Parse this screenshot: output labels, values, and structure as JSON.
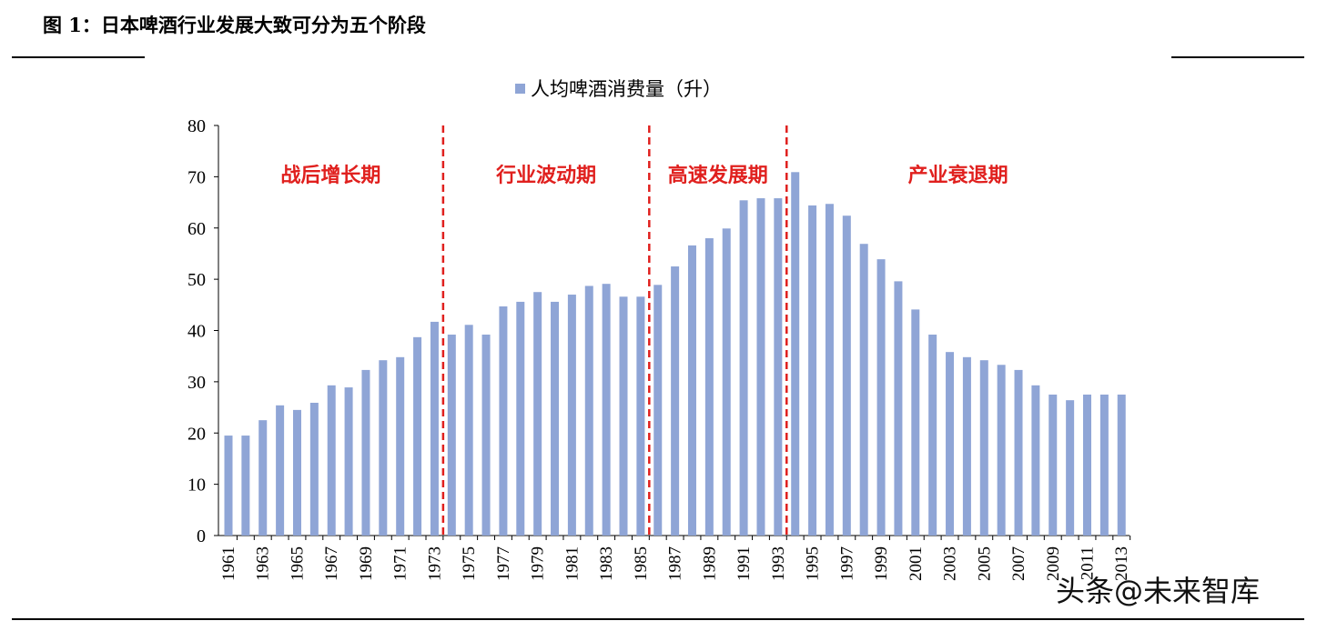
{
  "title": "图 1：日本啤酒行业发展大致可分为五个阶段",
  "watermark": "头条@未来智库",
  "colors": {
    "bar": "#8FA5D6",
    "phase_line": "#E0201E",
    "phase_label": "#E0201E"
  },
  "chart_data": {
    "type": "bar",
    "title": "",
    "legend": "top-center",
    "series": [
      {
        "name": "人均啤酒消费量（升）",
        "values": [
          19.5,
          19.5,
          22.5,
          25.4,
          24.5,
          25.9,
          29.3,
          28.9,
          32.3,
          34.2,
          34.8,
          38.7,
          41.7,
          39.2,
          41.1,
          39.2,
          44.7,
          45.6,
          47.5,
          45.6,
          47.0,
          48.7,
          49.1,
          46.6,
          46.6,
          48.9,
          52.5,
          56.6,
          58.0,
          59.9,
          65.4,
          65.8,
          65.8,
          70.9,
          64.4,
          64.7,
          62.4,
          56.9,
          53.9,
          49.6,
          44.1,
          39.2,
          35.8,
          34.8,
          34.2,
          33.3,
          32.3,
          29.3,
          27.5,
          26.4,
          27.5,
          27.5,
          27.5
        ]
      }
    ],
    "categories": [
      1961,
      1962,
      1963,
      1964,
      1965,
      1966,
      1967,
      1968,
      1969,
      1970,
      1971,
      1972,
      1973,
      1974,
      1975,
      1976,
      1977,
      1978,
      1979,
      1980,
      1981,
      1982,
      1983,
      1984,
      1985,
      1986,
      1987,
      1988,
      1989,
      1990,
      1991,
      1992,
      1993,
      1994,
      1995,
      1996,
      1997,
      1998,
      1999,
      2000,
      2001,
      2002,
      2003,
      2004,
      2005,
      2006,
      2007,
      2008,
      2009,
      2010,
      2011,
      2012,
      2013
    ],
    "ylim": [
      0,
      80
    ],
    "yticks": [
      0,
      10,
      20,
      30,
      40,
      50,
      60,
      70,
      80
    ],
    "xtick_labels": [
      "1961",
      "1963",
      "1965",
      "1967",
      "1969",
      "1971",
      "1973",
      "1975",
      "1977",
      "1979",
      "1981",
      "1983",
      "1985",
      "1987",
      "1989",
      "1991",
      "1993",
      "1995",
      "1997",
      "1999",
      "2001",
      "2003",
      "2005",
      "2007",
      "2009",
      "2011",
      "2013"
    ],
    "grid": false,
    "phases": [
      {
        "label": "战后增长期",
        "after_year": 1961
      },
      {
        "label": "行业波动期",
        "after_year": 1973
      },
      {
        "label": "高速发展期",
        "after_year": 1985
      },
      {
        "label": "产业衰退期",
        "after_year": 1993
      }
    ]
  }
}
